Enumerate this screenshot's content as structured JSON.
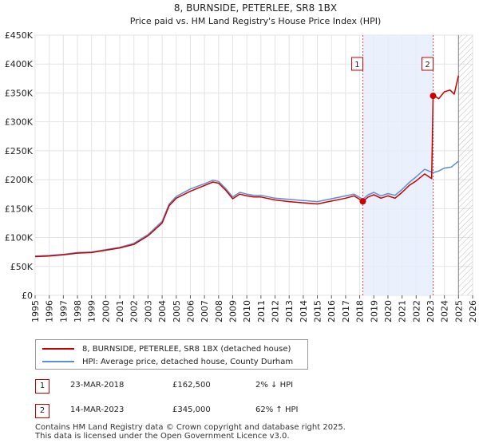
{
  "chart_data": {
    "type": "line",
    "title": "8, BURNSIDE, PETERLEE, SR8 1BX",
    "subtitle": "Price paid vs. HM Land Registry's House Price Index (HPI)",
    "xlim": [
      1995,
      2026
    ],
    "ylim": [
      0,
      450000
    ],
    "x_ticks": [
      1995,
      1996,
      1997,
      1998,
      1999,
      2000,
      2001,
      2002,
      2003,
      2004,
      2005,
      2006,
      2007,
      2008,
      2009,
      2010,
      2011,
      2012,
      2013,
      2014,
      2015,
      2016,
      2017,
      2018,
      2019,
      2020,
      2021,
      2022,
      2023,
      2024,
      2025,
      2026
    ],
    "y_ticks": [
      {
        "value": 0,
        "label": "£0"
      },
      {
        "value": 50000,
        "label": "£50K"
      },
      {
        "value": 100000,
        "label": "£100K"
      },
      {
        "value": 150000,
        "label": "£150K"
      },
      {
        "value": 200000,
        "label": "£200K"
      },
      {
        "value": 250000,
        "label": "£250K"
      },
      {
        "value": 300000,
        "label": "£300K"
      },
      {
        "value": 350000,
        "label": "£350K"
      },
      {
        "value": 400000,
        "label": "£400K"
      },
      {
        "value": 450000,
        "label": "£450K"
      }
    ],
    "grid": true,
    "shaded_range": [
      2018.22,
      2023.2
    ],
    "future_hatch_from": 2025.0,
    "series": [
      {
        "name": "8, BURNSIDE, PETERLEE, SR8 1BX (detached house)",
        "color": "#cc0000",
        "x": [
          1995,
          1996,
          1997,
          1998,
          1999,
          2000,
          2001,
          2002,
          2003,
          2004,
          2004.5,
          2005,
          2006,
          2007,
          2007.6,
          2008,
          2008.5,
          2009,
          2009.5,
          2010,
          2010.5,
          2011,
          2012,
          2013,
          2014,
          2015,
          2016,
          2017,
          2017.6,
          2018.22,
          2018.6,
          2019,
          2019.5,
          2020,
          2020.5,
          2021,
          2021.5,
          2022,
          2022.6,
          2023.1,
          2023.2,
          2023.3,
          2023.6,
          2024,
          2024.4,
          2024.7,
          2025.0
        ],
        "y": [
          67000,
          68000,
          70000,
          73000,
          74000,
          78000,
          82000,
          88000,
          103000,
          125000,
          155000,
          168000,
          180000,
          190000,
          196000,
          194000,
          182000,
          167000,
          175000,
          172000,
          170000,
          170000,
          165000,
          162000,
          160000,
          158000,
          163000,
          168000,
          172000,
          162500,
          170000,
          174000,
          168000,
          172000,
          168000,
          178000,
          190000,
          198000,
          210000,
          202000,
          345000,
          345000,
          340000,
          352000,
          355000,
          348000,
          380000
        ]
      },
      {
        "name": "HPI: Average price, detached house, County Durham",
        "color": "#5b8fd4",
        "x": [
          1995,
          1996,
          1997,
          1998,
          1999,
          2000,
          2001,
          2002,
          2003,
          2004,
          2004.5,
          2005,
          2006,
          2007,
          2007.6,
          2008,
          2008.5,
          2009,
          2009.5,
          2010,
          2010.5,
          2011,
          2012,
          2013,
          2014,
          2015,
          2016,
          2017,
          2017.6,
          2018.22,
          2018.6,
          2019,
          2019.5,
          2020,
          2020.5,
          2021,
          2021.5,
          2022,
          2022.6,
          2023.2,
          2023.6,
          2024,
          2024.5,
          2025.0
        ],
        "y": [
          68000,
          69000,
          71000,
          74000,
          75000,
          79000,
          83000,
          90000,
          105000,
          128000,
          158000,
          171000,
          184000,
          193000,
          199000,
          197000,
          185000,
          170000,
          178000,
          175000,
          173000,
          173000,
          168000,
          166000,
          164000,
          162000,
          167000,
          172000,
          175000,
          166000,
          174000,
          178000,
          172000,
          176000,
          173000,
          183000,
          195000,
          205000,
          218000,
          212000,
          215000,
          220000,
          222000,
          232000
        ]
      }
    ],
    "sales": [
      {
        "label": "1",
        "x": 2018.22,
        "y": 162500
      },
      {
        "label": "2",
        "x": 2023.2,
        "y": 345000
      }
    ]
  },
  "legend": {
    "items": [
      {
        "label": "8, BURNSIDE, PETERLEE, SR8 1BX (detached house)",
        "color": "#cc0000"
      },
      {
        "label": "HPI: Average price, detached house, County Durham",
        "color": "#5b8fd4"
      }
    ]
  },
  "annotations": [
    {
      "num": "1",
      "date": "23-MAR-2018",
      "price": "£162,500",
      "hpi": "2% ↓ HPI"
    },
    {
      "num": "2",
      "date": "14-MAR-2023",
      "price": "£345,000",
      "hpi": "62% ↑ HPI"
    }
  ],
  "footer": {
    "line1": "Contains HM Land Registry data © Crown copyright and database right 2025.",
    "line2": "This data is licensed under the Open Government Licence v3.0."
  }
}
